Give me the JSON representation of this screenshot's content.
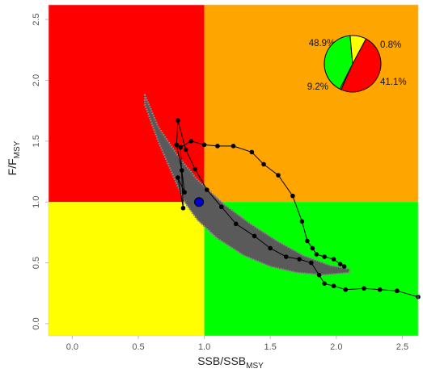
{
  "chart_data": {
    "type": "scatter",
    "title": "",
    "xlabel": {
      "main": "SSB/SSB",
      "sub": "MSY"
    },
    "ylabel": {
      "main": "F/F",
      "sub": "MSY"
    },
    "xlim": [
      -0.18,
      2.62
    ],
    "ylim": [
      -0.1,
      2.62
    ],
    "x_ticks": [
      "0.0",
      "0.5",
      "1.0",
      "1.5",
      "2.0",
      "2.5"
    ],
    "y_ticks": [
      "0.0",
      "0.5",
      "1.0",
      "1.5",
      "2.0",
      "2.5"
    ],
    "quadrants": [
      {
        "name": "overfished-and-overfishing",
        "color": "#ff0000",
        "x": [
          -0.18,
          1.0
        ],
        "y": [
          1.0,
          2.62
        ]
      },
      {
        "name": "overfishing-only",
        "color": "#ffa500",
        "x": [
          1.0,
          2.62
        ],
        "y": [
          1.0,
          2.62
        ]
      },
      {
        "name": "overfished-only",
        "color": "#ffff00",
        "x": [
          -0.18,
          1.0
        ],
        "y": [
          -0.1,
          1.0
        ]
      },
      {
        "name": "sustainable",
        "color": "#00ff00",
        "x": [
          1.0,
          2.62
        ],
        "y": [
          -0.1,
          1.0
        ]
      }
    ],
    "uncertainty_cloud": {
      "color": "#5a5a5a",
      "upper_edge": [
        [
          0.55,
          1.88
        ],
        [
          0.65,
          1.62
        ],
        [
          0.8,
          1.38
        ],
        [
          0.95,
          1.18
        ],
        [
          1.15,
          0.98
        ],
        [
          1.35,
          0.82
        ],
        [
          1.55,
          0.68
        ],
        [
          1.75,
          0.56
        ],
        [
          1.95,
          0.48
        ],
        [
          2.1,
          0.45
        ]
      ],
      "lower_edge": [
        [
          2.1,
          0.42
        ],
        [
          1.9,
          0.4
        ],
        [
          1.7,
          0.42
        ],
        [
          1.5,
          0.47
        ],
        [
          1.3,
          0.56
        ],
        [
          1.1,
          0.7
        ],
        [
          0.95,
          0.85
        ],
        [
          0.85,
          1.0
        ],
        [
          0.75,
          1.25
        ],
        [
          0.65,
          1.5
        ],
        [
          0.55,
          1.8
        ]
      ]
    },
    "series": [
      {
        "type": "line",
        "color": "#000000",
        "points": [
          [
            2.62,
            0.22
          ],
          [
            2.46,
            0.27
          ],
          [
            2.33,
            0.28
          ],
          [
            2.21,
            0.29
          ],
          [
            2.07,
            0.28
          ],
          [
            1.98,
            0.31
          ],
          [
            1.91,
            0.33
          ],
          [
            1.87,
            0.4
          ],
          [
            1.81,
            0.5
          ],
          [
            1.72,
            0.53
          ],
          [
            1.62,
            0.55
          ],
          [
            1.5,
            0.62
          ],
          [
            1.38,
            0.72
          ],
          [
            1.24,
            0.82
          ],
          [
            1.13,
            0.96
          ],
          [
            1.02,
            1.1
          ],
          [
            0.93,
            1.27
          ],
          [
            0.86,
            1.43
          ],
          [
            0.8,
            1.67
          ],
          [
            0.79,
            1.47
          ],
          [
            0.83,
            1.26
          ],
          [
            0.85,
            1.08
          ],
          [
            0.8,
            1.2
          ],
          [
            0.84,
            0.95
          ],
          [
            0.82,
            1.45
          ],
          [
            0.9,
            1.5
          ],
          [
            1.0,
            1.47
          ],
          [
            1.1,
            1.46
          ],
          [
            1.22,
            1.46
          ],
          [
            1.36,
            1.41
          ],
          [
            1.45,
            1.31
          ],
          [
            1.56,
            1.22
          ],
          [
            1.67,
            1.05
          ],
          [
            1.74,
            0.84
          ],
          [
            1.78,
            0.68
          ],
          [
            1.82,
            0.62
          ],
          [
            1.85,
            0.57
          ],
          [
            1.91,
            0.55
          ],
          [
            1.98,
            0.53
          ],
          [
            2.03,
            0.49
          ],
          [
            2.06,
            0.47
          ]
        ]
      }
    ],
    "current_point": {
      "x": 0.96,
      "y": 1.0,
      "color": "#0000cd"
    },
    "pie": {
      "slices": [
        {
          "label": "48.9%",
          "value": 48.9,
          "color": "#ff0000"
        },
        {
          "label": "0.8%",
          "value": 0.8,
          "color": "#ffa500"
        },
        {
          "label": "41.1%",
          "value": 41.1,
          "color": "#00ff00"
        },
        {
          "label": "9.2%",
          "value": 9.2,
          "color": "#ffff00"
        }
      ]
    },
    "grid": false
  }
}
